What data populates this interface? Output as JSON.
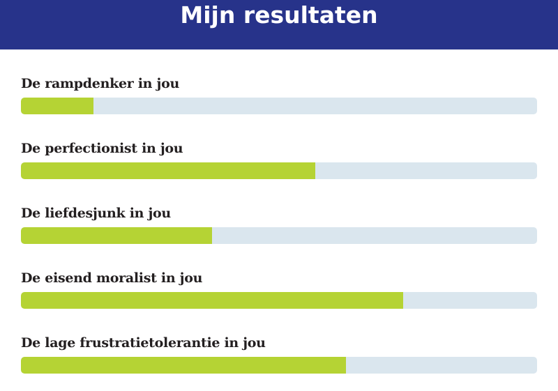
{
  "header": {
    "title": "Mijn resultaten"
  },
  "colors": {
    "header_bg": "#27338a",
    "fill": "#b5d334",
    "track": "#dae6ee"
  },
  "results": [
    {
      "label": "De rampdenker in jou",
      "percent": 14
    },
    {
      "label": "De perfectionist in jou",
      "percent": 57
    },
    {
      "label": "De liefdesjunk in jou",
      "percent": 37
    },
    {
      "label": "De eisend moralist in jou",
      "percent": 74
    },
    {
      "label": "De lage frustratietolerantie in jou",
      "percent": 63
    }
  ]
}
